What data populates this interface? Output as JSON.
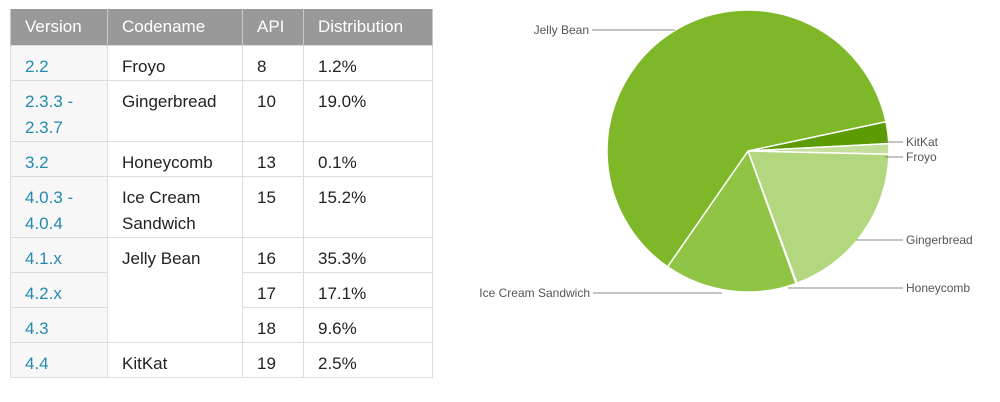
{
  "table": {
    "headers": [
      "Version",
      "Codename",
      "API",
      "Distribution"
    ],
    "rows": [
      {
        "version": "2.2",
        "codename": "Froyo",
        "api": "8",
        "distribution": "1.2%"
      },
      {
        "version": "2.3.3 -\n2.3.7",
        "codename": "Gingerbread",
        "api": "10",
        "distribution": "19.0%"
      },
      {
        "version": "3.2",
        "codename": "Honeycomb",
        "api": "13",
        "distribution": "0.1%"
      },
      {
        "version": "4.0.3 -\n4.0.4",
        "codename": "Ice Cream\nSandwich",
        "api": "15",
        "distribution": "15.2%"
      },
      {
        "version": "4.1.x",
        "codename": "Jelly Bean",
        "api": "16",
        "distribution": "35.3%"
      },
      {
        "version": "4.2.x",
        "codename": "",
        "api": "17",
        "distribution": "17.1%"
      },
      {
        "version": "4.3",
        "codename": "",
        "api": "18",
        "distribution": "9.6%"
      },
      {
        "version": "4.4",
        "codename": "KitKat",
        "api": "19",
        "distribution": "2.5%"
      }
    ]
  },
  "chart_data": {
    "type": "pie",
    "title": "",
    "slices": [
      {
        "label": "KitKat",
        "value": 2.5,
        "color": "#5c9b04"
      },
      {
        "label": "Froyo",
        "value": 1.2,
        "color": "#c4df9b"
      },
      {
        "label": "Gingerbread",
        "value": 19.0,
        "color": "#b2d77f"
      },
      {
        "label": "Honeycomb",
        "value": 0.1,
        "color": "#a4cf62"
      },
      {
        "label": "Ice Cream Sandwich",
        "value": 15.2,
        "color": "#90c445"
      },
      {
        "label": "Jelly Bean",
        "value": 62.0,
        "color": "#7eb828"
      }
    ]
  }
}
